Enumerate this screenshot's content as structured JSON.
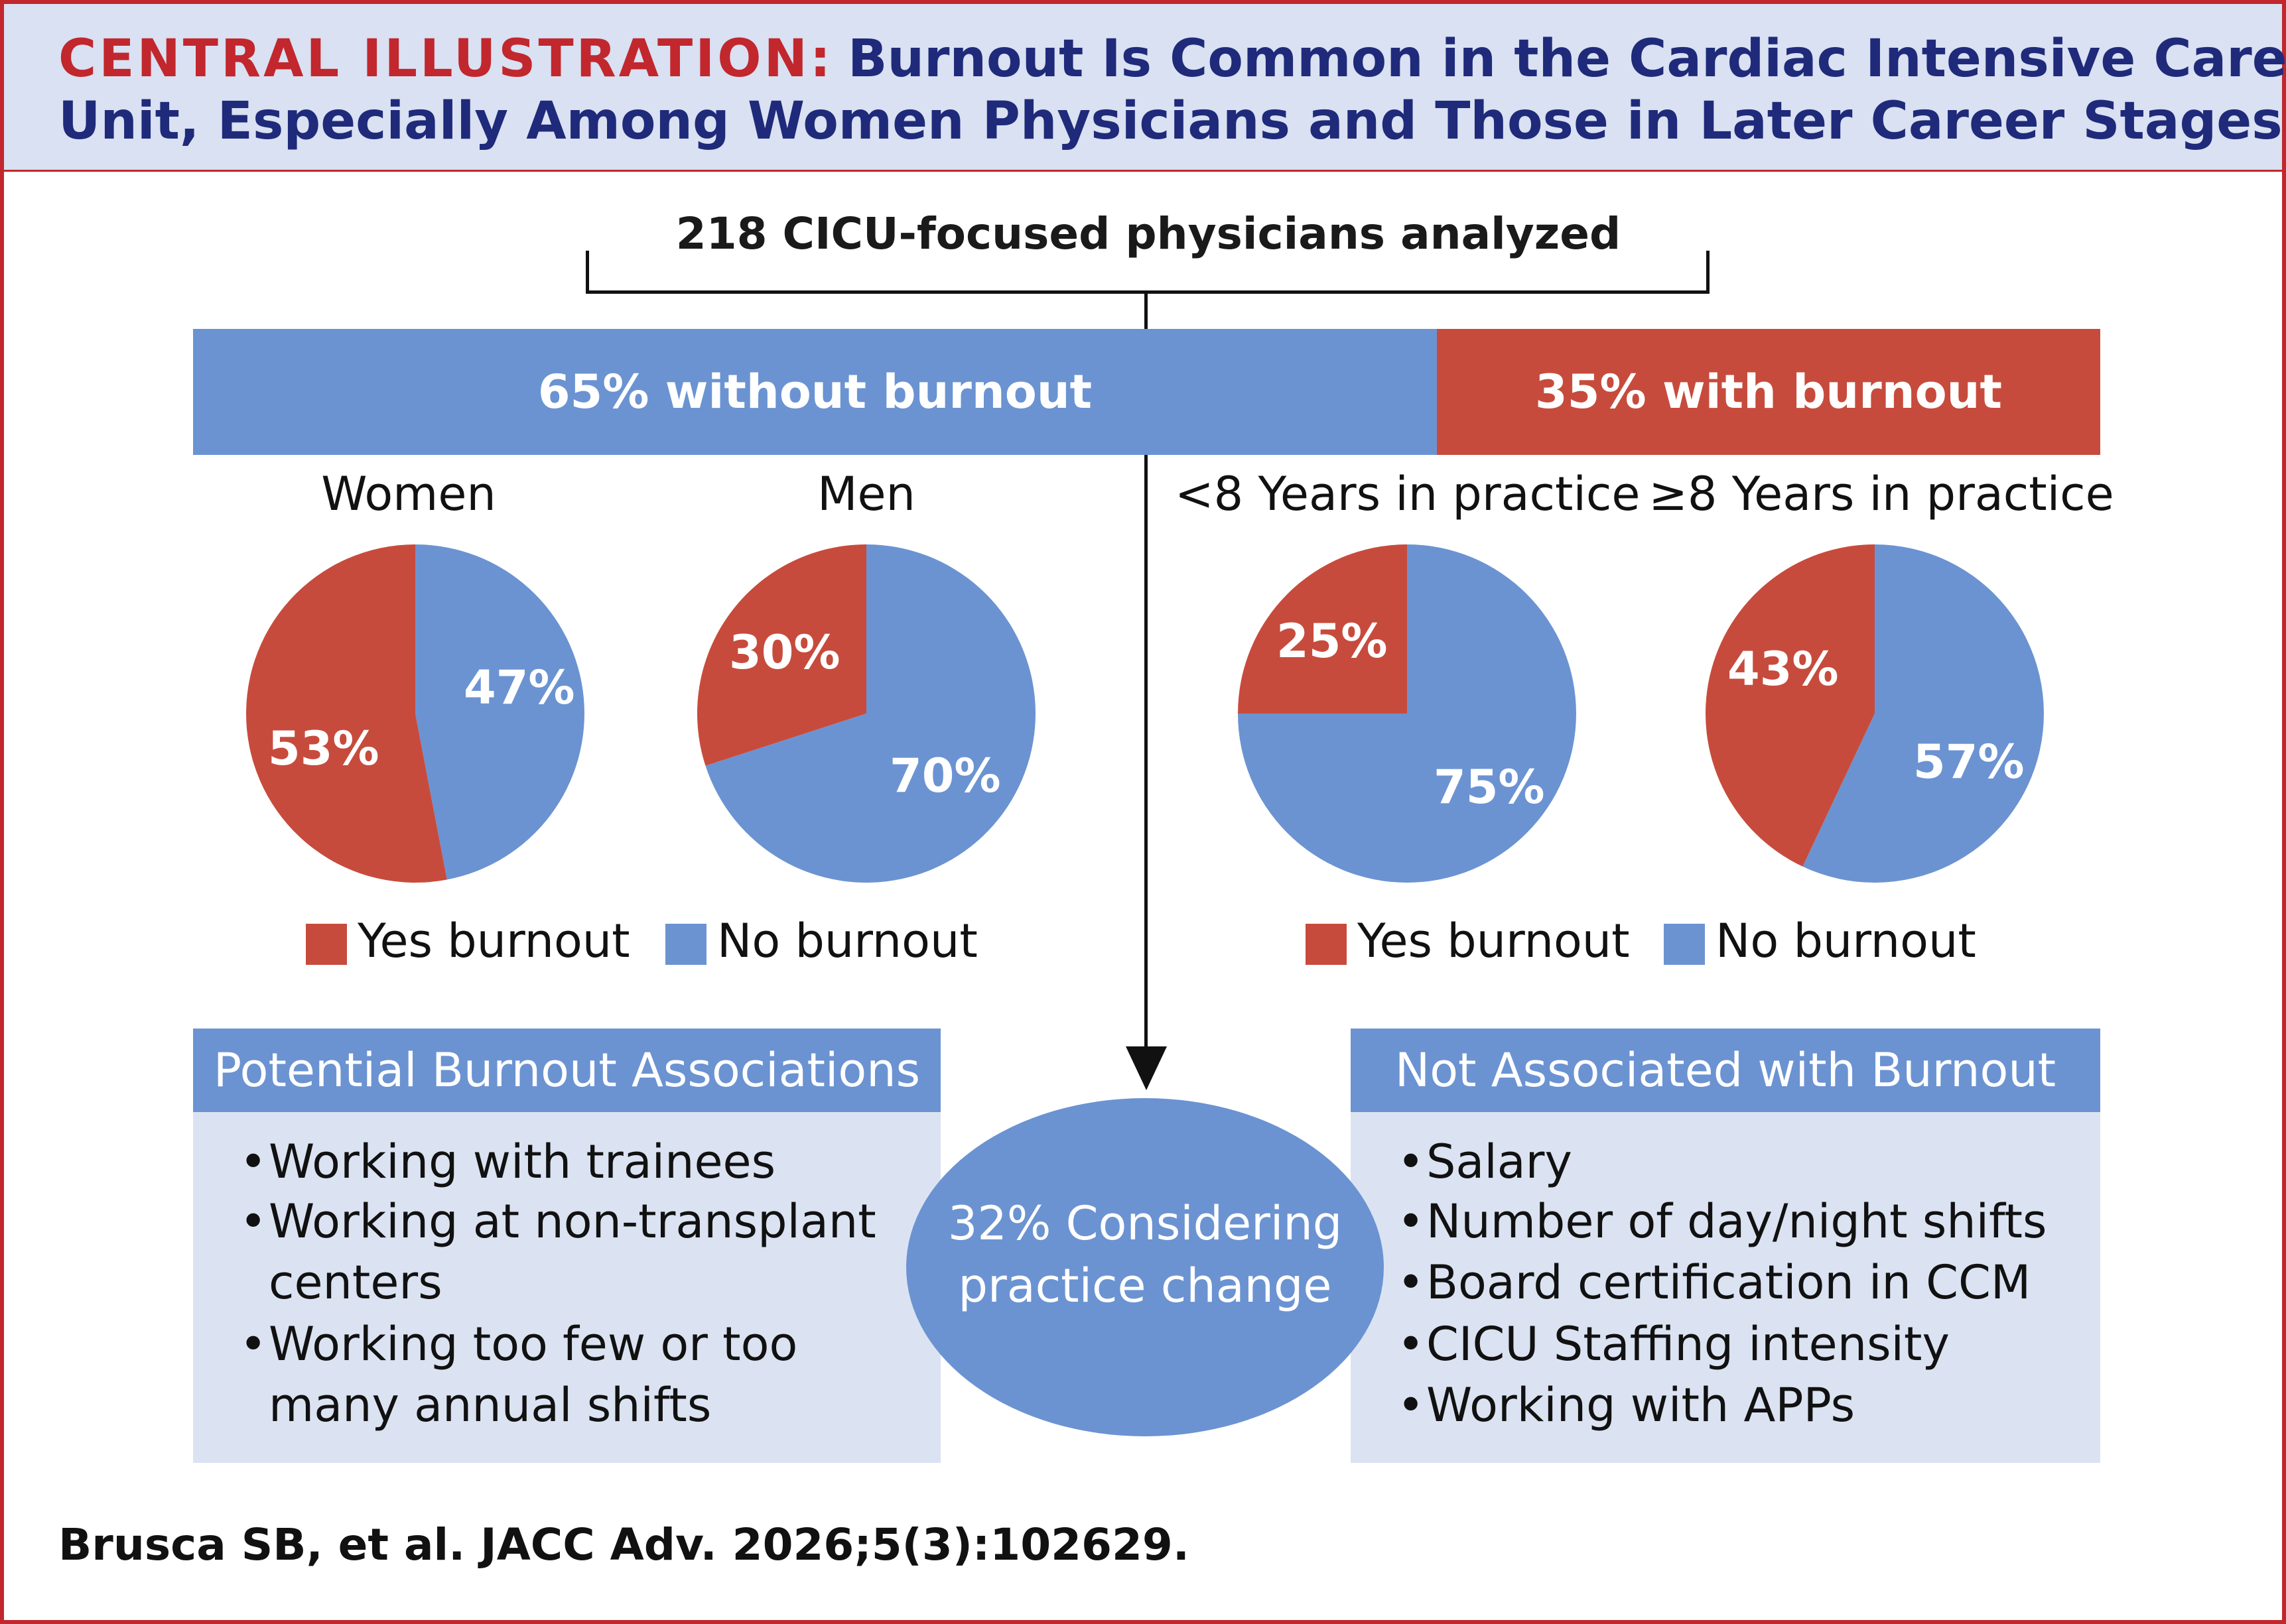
{
  "header": {
    "label": "CENTRAL ILLUSTRATION:",
    "title_line1": "Burnout Is Common in the Cardiac Intensive Care",
    "title_line2": "Unit, Especially Among Women Physicians and Those in Later Career Stages"
  },
  "root": {
    "label": "218 CICU-focused physicians analyzed"
  },
  "split_bar": {
    "without_label": "65% without burnout",
    "with_label": "35% with burnout",
    "without_fraction": 0.65,
    "with_fraction": 0.35
  },
  "colors": {
    "yes_burnout": "#c74b3c",
    "no_burnout": "#6b93d2",
    "accent": "#c1272d",
    "navy": "#1f2a7a"
  },
  "chart_data": [
    {
      "type": "pie",
      "title": "Women",
      "values": [
        53,
        47
      ],
      "labels": [
        "53%",
        "47%"
      ],
      "categories": [
        "Yes burnout",
        "No burnout"
      ]
    },
    {
      "type": "pie",
      "title": "Men",
      "values": [
        30,
        70
      ],
      "labels": [
        "30%",
        "70%"
      ],
      "categories": [
        "Yes burnout",
        "No burnout"
      ]
    },
    {
      "type": "pie",
      "title": "<8 Years in practice",
      "values": [
        25,
        75
      ],
      "labels": [
        "25%",
        "75%"
      ],
      "categories": [
        "Yes burnout",
        "No burnout"
      ]
    },
    {
      "type": "pie",
      "title": "≥8 Years in practice",
      "values": [
        43,
        57
      ],
      "labels": [
        "43%",
        "57%"
      ],
      "categories": [
        "Yes burnout",
        "No burnout"
      ]
    }
  ],
  "legend": {
    "yes": "Yes burnout",
    "no": "No burnout"
  },
  "associations": {
    "title": "Potential Burnout Associations",
    "items": [
      {
        "line1": "Working with trainees",
        "line2": ""
      },
      {
        "line1": "Working at non-transplant",
        "line2": "centers"
      },
      {
        "line1": "Working too few or too",
        "line2": "many annual shifts"
      }
    ]
  },
  "outcome": {
    "line1": "32% Considering",
    "line2": "practice change"
  },
  "not_associated": {
    "title": "Not Associated with Burnout",
    "items": [
      "Salary",
      "Number of day/night shifts",
      "Board certification in CCM",
      "CICU Staffing intensity",
      "Working with APPs"
    ]
  },
  "bullet_char": "•",
  "citation": "Brusca SB, et al. JACC Adv. 2026;5(3):102629."
}
